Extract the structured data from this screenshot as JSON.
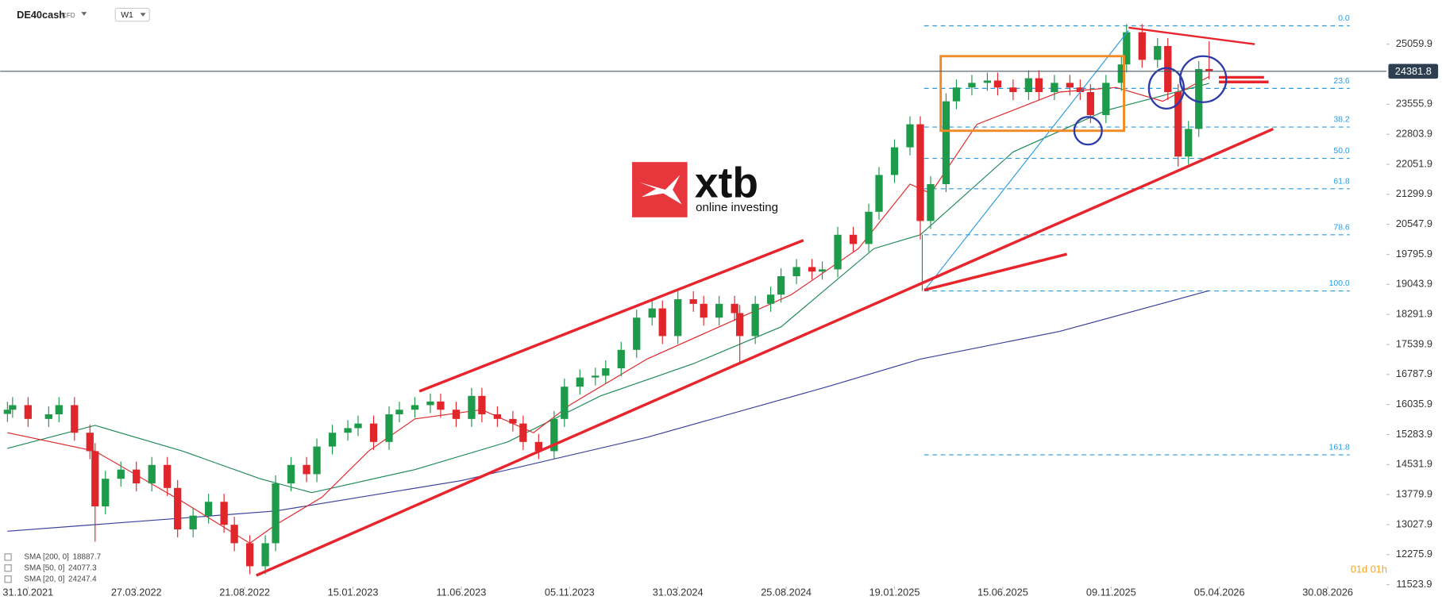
{
  "chart_data": {
    "type": "candlestick",
    "symbol": "DE40cash",
    "instrument": "CFD",
    "timeframe": "W1",
    "up_color": "#1e9a4b",
    "down_color": "#e0262a",
    "x": [
      -4,
      -3,
      0,
      4,
      6,
      9,
      12,
      13,
      15,
      18,
      21,
      24,
      27,
      29,
      32,
      35,
      38,
      40,
      43,
      46,
      48,
      51,
      54,
      56,
      59,
      62,
      64,
      67,
      70,
      72,
      75,
      78,
      80,
      83,
      86,
      88,
      91,
      94,
      96,
      99,
      102,
      104,
      107,
      110,
      112,
      115,
      118,
      121,
      123,
      126,
      129,
      131,
      134,
      137,
      138,
      141,
      144,
      146,
      149,
      152,
      154,
      157,
      160,
      163,
      165,
      168,
      171,
      173,
      175,
      178,
      180,
      183,
      186,
      188,
      191,
      194,
      196,
      199,
      202,
      204,
      206,
      209,
      212,
      213,
      216,
      219,
      221,
      223,
      225,
      227,
      229
    ],
    "open": [
      15800,
      15905,
      16020,
      15674,
      15790,
      16020,
      15329,
      14867,
      13484,
      14176,
      14406,
      14060,
      14522,
      13945,
      12907,
      13253,
      13599,
      13023,
      12561,
      11985,
      12561,
      14060,
      14522,
      14291,
      14983,
      15329,
      15444,
      15559,
      15098,
      15790,
      15905,
      16020,
      16110,
      15905,
      15674,
      16251,
      15790,
      15674,
      15559,
      15098,
      14867,
      15674,
      16482,
      16712,
      16758,
      16943,
      17404,
      18211,
      18442,
      17750,
      18672,
      18557,
      18211,
      18557,
      18326,
      17750,
      18557,
      18788,
      19249,
      19479,
      19364,
      19420,
      20287,
      20056,
      20863,
      21785,
      22477,
      23054,
      20632,
      21555,
      23630,
      23976,
      24092,
      24150,
      23976,
      23861,
      24207,
      23861,
      24092,
      23976,
      23861,
      23284,
      24092,
      24553,
      25360,
      24668,
      25014,
      23861,
      22247,
      22938,
      24437
    ],
    "high": [
      16105,
      16220,
      16220,
      15990,
      16220,
      16220,
      15529,
      15067,
      14376,
      14606,
      14606,
      14722,
      14722,
      14145,
      13453,
      13799,
      13799,
      13223,
      12761,
      12761,
      14260,
      14722,
      14722,
      15183,
      15529,
      15644,
      15759,
      15759,
      15990,
      16105,
      16220,
      16310,
      16310,
      16105,
      16451,
      16451,
      15990,
      15874,
      15759,
      15298,
      15874,
      16682,
      16912,
      16958,
      17143,
      17604,
      18411,
      18642,
      18642,
      18872,
      18872,
      18757,
      18757,
      18757,
      18526,
      18757,
      18988,
      19449,
      19679,
      19679,
      19620,
      20487,
      20487,
      21063,
      21985,
      22677,
      23254,
      23254,
      21755,
      23830,
      24176,
      24292,
      24350,
      24350,
      24176,
      24407,
      24407,
      24292,
      24292,
      24176,
      24061,
      24292,
      24753,
      25560,
      25560,
      25214,
      25214,
      24061,
      23138,
      24637,
      25130
    ],
    "low": [
      15600,
      15705,
      15474,
      15474,
      15590,
      15129,
      14667,
      12600,
      13284,
      13976,
      13860,
      13860,
      13745,
      12707,
      12707,
      13053,
      12823,
      12361,
      11785,
      11785,
      12361,
      13860,
      14091,
      14091,
      14783,
      15129,
      15244,
      14898,
      14898,
      15590,
      15705,
      15820,
      15705,
      15474,
      15474,
      15590,
      15474,
      15359,
      14898,
      14667,
      14667,
      15474,
      16282,
      16512,
      16558,
      16743,
      17204,
      18011,
      17550,
      17550,
      18357,
      18011,
      18011,
      18126,
      17060,
      17550,
      18357,
      18588,
      19049,
      19164,
      19164,
      19220,
      19856,
      19856,
      20663,
      21585,
      22277,
      20170,
      20432,
      21355,
      23430,
      23776,
      23892,
      23776,
      23661,
      23661,
      23661,
      23661,
      23776,
      23661,
      23084,
      23084,
      23892,
      24353,
      24468,
      24468,
      23661,
      22000,
      22047,
      22738,
      24182
    ],
    "close": [
      15905,
      16020,
      15674,
      15790,
      16020,
      15329,
      14867,
      13484,
      14176,
      14406,
      14060,
      14522,
      13945,
      12907,
      13253,
      13599,
      13023,
      12561,
      11985,
      12561,
      14060,
      14522,
      14291,
      14983,
      15329,
      15444,
      15559,
      15098,
      15790,
      15905,
      16020,
      16110,
      15905,
      15674,
      16251,
      15790,
      15674,
      15559,
      15098,
      14867,
      15674,
      16482,
      16712,
      16758,
      16943,
      17404,
      18211,
      18442,
      17750,
      18672,
      18557,
      18211,
      18557,
      18326,
      17750,
      18557,
      18788,
      19249,
      19479,
      19364,
      19420,
      20287,
      20056,
      20863,
      21785,
      22477,
      23054,
      20632,
      21555,
      23630,
      23976,
      24092,
      24150,
      23976,
      23861,
      24207,
      23861,
      24092,
      23976,
      23861,
      23284,
      24092,
      24553,
      25360,
      24668,
      25014,
      23861,
      22247,
      22938,
      24437,
      24381.8
    ],
    "indicators": [
      {
        "name": "SMA [200, 0]",
        "color": "#3a3f9c",
        "x": [
          -4,
          48,
          84,
          120,
          155,
          173,
          200,
          229
        ],
        "values": [
          12860,
          13368,
          14129,
          15213,
          16482,
          17173,
          17865,
          18887.7
        ]
      },
      {
        "name": "SMA [50, 0]",
        "color": "#1f8a57",
        "x": [
          -4,
          13,
          30,
          45,
          55,
          75,
          93,
          111,
          129,
          146,
          164,
          173,
          191,
          209,
          229
        ],
        "values": [
          14936,
          15513,
          14867,
          14176,
          13830,
          14406,
          15098,
          16251,
          17058,
          17980,
          19940,
          20286,
          22361,
          23399,
          24077.3
        ]
      },
      {
        "name": "SMA [20, 0]",
        "color": "#e0262a",
        "x": [
          -4,
          13,
          30,
          43,
          48,
          57,
          66,
          75,
          88,
          98,
          105,
          120,
          134,
          148,
          161,
          171,
          175,
          184,
          200,
          211,
          220,
          229
        ],
        "values": [
          15329,
          14867,
          13599,
          12561,
          13023,
          13714,
          14867,
          15674,
          15905,
          15329,
          16020,
          17173,
          17980,
          18788,
          19940,
          21555,
          21325,
          23054,
          23861,
          23976,
          23630,
          24247.4
        ]
      }
    ],
    "current_price": 24381.8,
    "fib_levels": [
      {
        "value": 25521,
        "label": "0.0"
      },
      {
        "value": 23953,
        "label": "23.6"
      },
      {
        "value": 22985,
        "label": "38.2"
      },
      {
        "value": 22200,
        "label": "50.0"
      },
      {
        "value": 21439,
        "label": "61.8"
      },
      {
        "value": 20286,
        "label": "78.6"
      },
      {
        "value": 18880,
        "label": "100.0"
      },
      {
        "value": 14775,
        "label": "161.8"
      }
    ],
    "xlim": [
      -5.4,
      263.4
    ],
    "xticks": [
      {
        "value": 0,
        "label": "31.10.2021"
      },
      {
        "value": 21,
        "label": "27.03.2022"
      },
      {
        "value": 42,
        "label": "21.08.2022"
      },
      {
        "value": 63,
        "label": "15.01.2023"
      },
      {
        "value": 84,
        "label": "11.06.2023"
      },
      {
        "value": 105,
        "label": "05.11.2023"
      },
      {
        "value": 126,
        "label": "31.03.2024"
      },
      {
        "value": 147,
        "label": "25.08.2024"
      },
      {
        "value": 168,
        "label": "19.01.2025"
      },
      {
        "value": 189,
        "label": "15.06.2025"
      },
      {
        "value": 210,
        "label": "09.11.2025"
      },
      {
        "value": 231,
        "label": "05.04.2026"
      },
      {
        "value": 252,
        "label": "30.08.2026"
      }
    ],
    "ylim": [
      11408,
      26167
    ],
    "yticks": [
      25059.9,
      23555.9,
      22803.9,
      22051.9,
      21299.9,
      20547.9,
      19795.9,
      19043.9,
      18291.9,
      17539.9,
      16787.9,
      16035.9,
      15283.9,
      14531.9,
      13779.9,
      13027.9,
      12275.9,
      11523.9
    ],
    "countdown": "01d 01h",
    "logo": {
      "name": "xtb",
      "tagline": "online investing"
    }
  }
}
